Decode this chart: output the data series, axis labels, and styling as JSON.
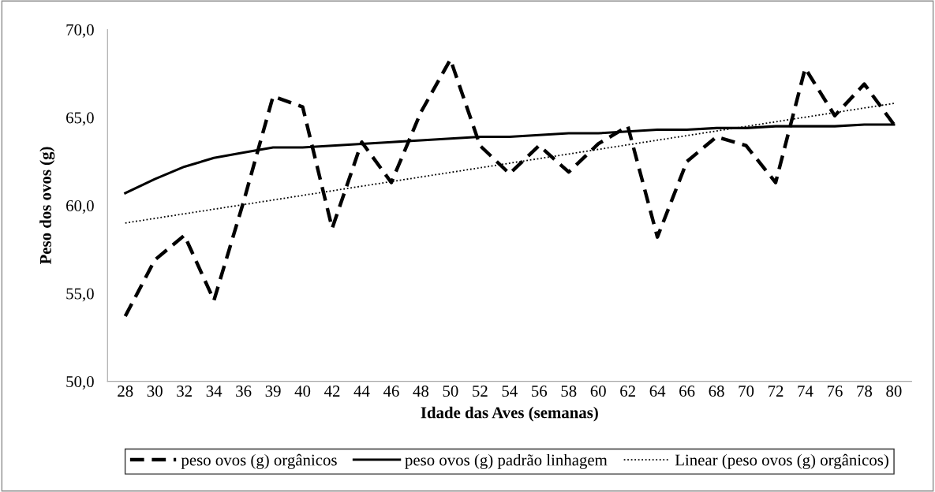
{
  "chart_data": {
    "type": "line",
    "xlabel": "Idade das Aves (semanas)",
    "ylabel": "Peso dos ovos (g)",
    "categories": [
      "28",
      "30",
      "32",
      "34",
      "36",
      "39",
      "40",
      "42",
      "44",
      "46",
      "48",
      "50",
      "52",
      "54",
      "56",
      "58",
      "60",
      "62",
      "64",
      "66",
      "68",
      "70",
      "72",
      "74",
      "76",
      "78",
      "80"
    ],
    "series": [
      {
        "name": "peso ovos (g) orgânicos",
        "color": "#000000",
        "line_style": "dashed",
        "values": [
          53.7,
          56.9,
          58.3,
          54.6,
          60.2,
          66.2,
          65.6,
          58.7,
          63.6,
          61.3,
          65.3,
          68.3,
          63.4,
          61.8,
          63.4,
          61.9,
          63.5,
          64.5,
          58.2,
          62.5,
          63.9,
          63.4,
          61.3,
          67.8,
          65.1,
          66.9,
          64.6
        ]
      },
      {
        "name": "peso ovos (g) padrão linhagem",
        "color": "#000000",
        "line_style": "solid",
        "values": [
          60.7,
          61.5,
          62.2,
          62.7,
          63.0,
          63.3,
          63.3,
          63.4,
          63.5,
          63.6,
          63.7,
          63.8,
          63.9,
          63.9,
          64.0,
          64.1,
          64.1,
          64.2,
          64.3,
          64.3,
          64.4,
          64.4,
          64.5,
          64.5,
          64.5,
          64.6,
          64.6
        ]
      },
      {
        "name": "Linear (peso ovos (g) orgânicos)",
        "color": "#000000",
        "line_style": "dotted",
        "values": [
          59.0,
          null,
          null,
          null,
          null,
          null,
          null,
          null,
          null,
          null,
          null,
          null,
          null,
          null,
          null,
          null,
          null,
          null,
          null,
          null,
          null,
          null,
          null,
          null,
          null,
          null,
          65.8
        ]
      }
    ],
    "ylim": [
      50,
      70
    ],
    "yticks": [
      {
        "value": 50,
        "label": "50,0"
      },
      {
        "value": 55,
        "label": "55,0"
      },
      {
        "value": 60,
        "label": "60,0"
      },
      {
        "value": 65,
        "label": "65,0"
      },
      {
        "value": 70,
        "label": "70,0"
      }
    ],
    "grid": false,
    "legend": "bottom",
    "marker": "none"
  }
}
